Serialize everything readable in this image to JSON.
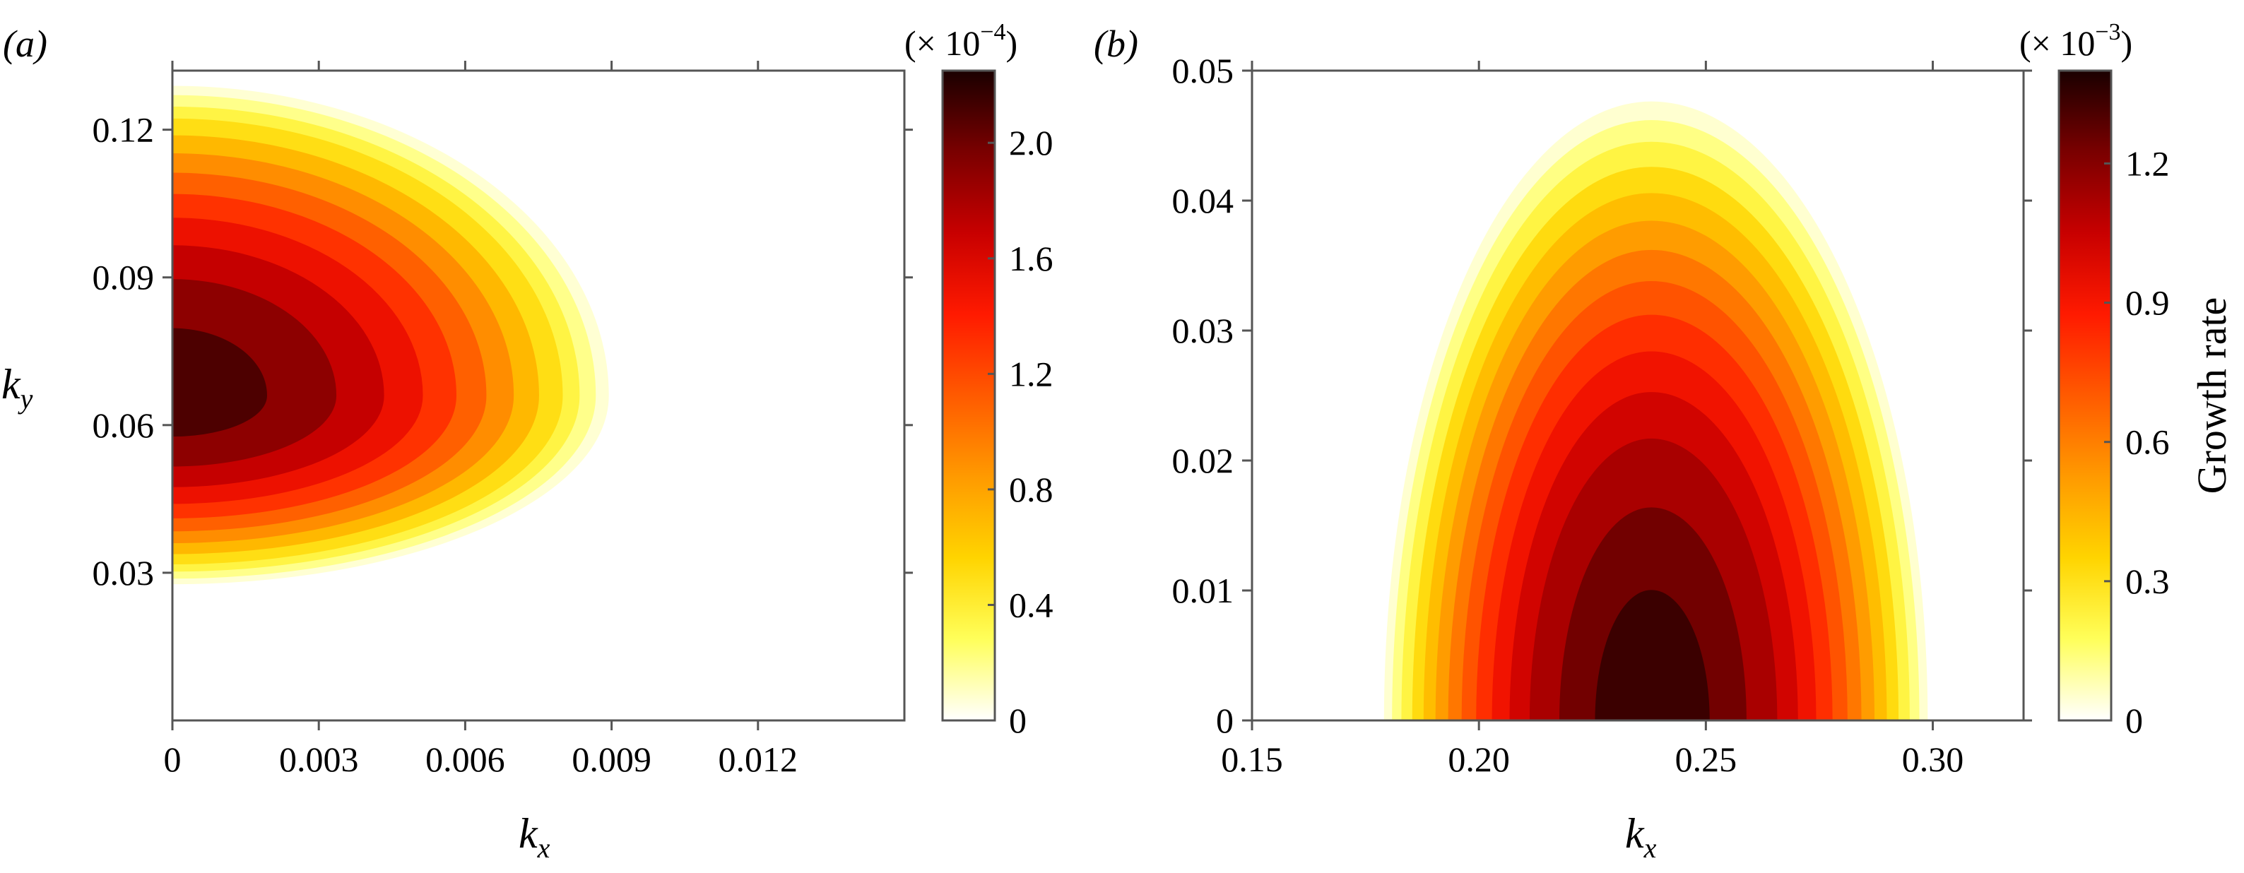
{
  "colormap": [
    "#ffffff",
    "#ffff5a",
    "#ffd400",
    "#ff9a00",
    "#ff5a00",
    "#ff1a00",
    "#c80000",
    "#7a0000",
    "#1a0000"
  ],
  "chart_data": [
    {
      "type": "heatmap",
      "panel_label": "(a)",
      "title": "",
      "xlabel": "k",
      "xlabel_sub": "x",
      "ylabel": "k",
      "ylabel_sub": "y",
      "xlim": [
        0,
        0.015
      ],
      "ylim": [
        0,
        0.132
      ],
      "xticks": [
        0,
        0.003,
        0.006,
        0.009,
        0.012
      ],
      "xtick_labels": [
        "0",
        "0.003",
        "0.006",
        "0.009",
        "0.012"
      ],
      "yticks": [
        0.03,
        0.06,
        0.09,
        0.12
      ],
      "ytick_labels": [
        "0.03",
        "0.06",
        "0.09",
        "0.12"
      ],
      "colorbar": {
        "multiplier": "(× 10",
        "exponent": "−4",
        "range": [
          0,
          2.25
        ],
        "ticks": [
          0,
          0.4,
          0.8,
          1.2,
          1.6,
          2.0
        ],
        "tick_labels": [
          "0",
          "0.4",
          "0.8",
          "1.2",
          "1.6",
          "2.0"
        ],
        "label": ""
      },
      "growth_rate_field": {
        "peak_value": 2.2,
        "peak_kx": 0,
        "peak_ky": 0.066,
        "levels": [
          0.075,
          0.2,
          0.35,
          0.5,
          0.7,
          0.9,
          1.1,
          1.3,
          1.5,
          1.7,
          1.9,
          2.1
        ],
        "zero_contour_kx_max": 0.0091,
        "zero_contour_ky_range": [
          0.027,
          0.13
        ]
      }
    },
    {
      "type": "heatmap",
      "panel_label": "(b)",
      "title": "",
      "xlabel": "k",
      "xlabel_sub": "x",
      "ylabel": "",
      "xlim": [
        0.15,
        0.32
      ],
      "ylim": [
        0,
        0.05
      ],
      "xticks": [
        0.15,
        0.2,
        0.25,
        0.3
      ],
      "xtick_labels": [
        "0.15",
        "0.20",
        "0.25",
        "0.30"
      ],
      "yticks": [
        0,
        0.01,
        0.02,
        0.03,
        0.04,
        0.05
      ],
      "ytick_labels": [
        "0",
        "0.01",
        "0.02",
        "0.03",
        "0.04",
        "0.05"
      ],
      "colorbar": {
        "multiplier": "(× 10",
        "exponent": "−3",
        "range": [
          0,
          1.4
        ],
        "ticks": [
          0,
          0.3,
          0.6,
          0.9,
          1.2
        ],
        "tick_labels": [
          "0",
          "0.3",
          "0.6",
          "0.9",
          "1.2"
        ],
        "label": "Growth rate"
      },
      "growth_rate_field": {
        "peak_value": 1.4,
        "peak_kx": 0.238,
        "peak_ky": 0,
        "levels": [
          0.05,
          0.13,
          0.22,
          0.32,
          0.42,
          0.52,
          0.62,
          0.72,
          0.82,
          0.92,
          1.02,
          1.12,
          1.24,
          1.34
        ],
        "zero_contour_kx_range": [
          0.178,
          0.3
        ],
        "zero_contour_ky_max": 0.0485
      }
    }
  ]
}
